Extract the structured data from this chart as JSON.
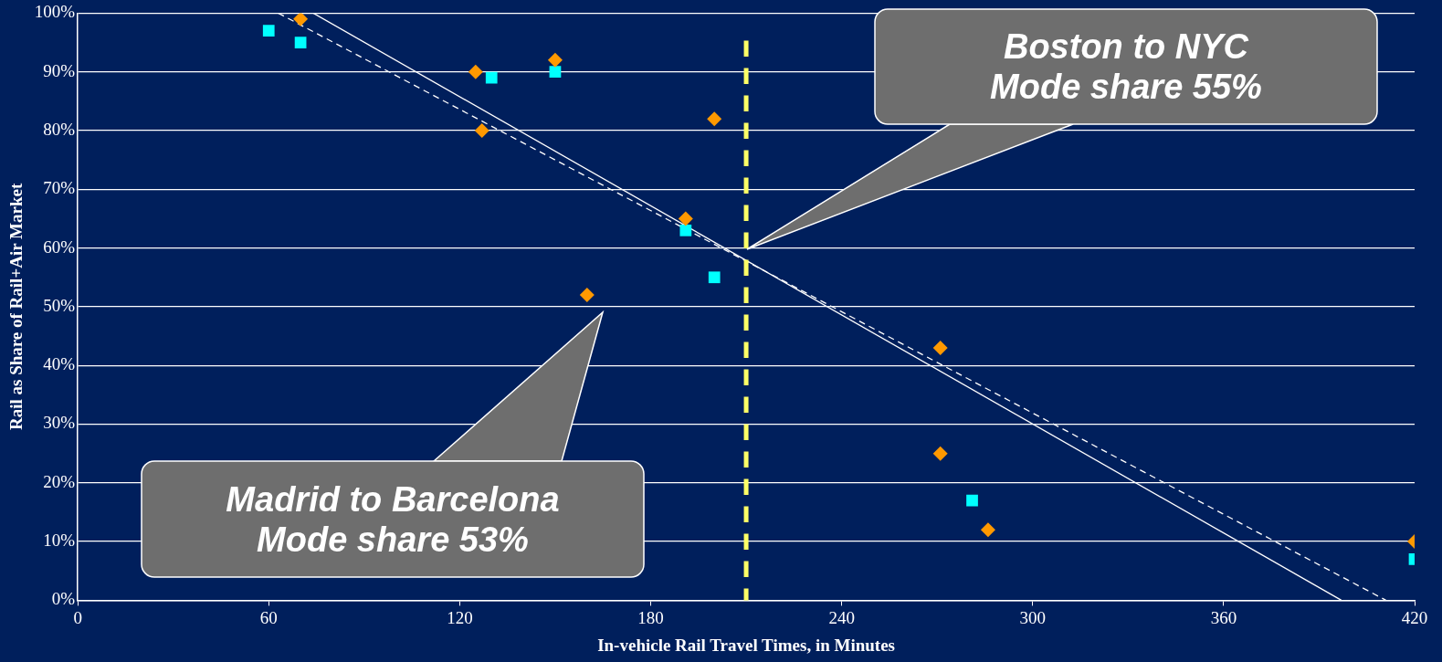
{
  "chart_data": {
    "type": "scatter",
    "xlabel": "In-vehicle Rail Travel Times, in Minutes",
    "ylabel": "Rail as Share of Rail+Air Market",
    "xlim": [
      0,
      420
    ],
    "xticks": [
      0,
      60,
      120,
      180,
      240,
      300,
      360,
      420
    ],
    "ylim": [
      0,
      100
    ],
    "yticks": [
      {
        "value": 0,
        "label": "0%"
      },
      {
        "value": 10,
        "label": "10%"
      },
      {
        "value": 20,
        "label": "20%"
      },
      {
        "value": 30,
        "label": "30%"
      },
      {
        "value": 40,
        "label": "40%"
      },
      {
        "value": 50,
        "label": "50%"
      },
      {
        "value": 60,
        "label": "60%"
      },
      {
        "value": 70,
        "label": "70%"
      },
      {
        "value": 80,
        "label": "80%"
      },
      {
        "value": 90,
        "label": "90%"
      },
      {
        "value": 100,
        "label": "100%"
      }
    ],
    "grid": "y",
    "legend": false,
    "series": [
      {
        "type": "line",
        "color": "#ffffff",
        "line_style": "solid",
        "marker": "none",
        "x": [
          74,
          397
        ],
        "values": [
          100,
          0
        ]
      },
      {
        "type": "line",
        "color": "#ffffff",
        "line_style": "dashed",
        "marker": "none",
        "x": [
          63,
          411
        ],
        "values": [
          100,
          0
        ]
      },
      {
        "color": "#ff9900",
        "marker": "diamond",
        "x": [
          70,
          125,
          127,
          150,
          200,
          191,
          160,
          271,
          271,
          286,
          420
        ],
        "values": [
          99,
          90,
          80,
          92,
          82,
          65,
          52,
          43,
          25,
          12,
          10
        ]
      },
      {
        "color": "#00ffff",
        "marker": "square",
        "x": [
          60,
          70,
          130,
          150,
          191,
          200,
          281,
          420
        ],
        "values": [
          97,
          95,
          89,
          90,
          63,
          55,
          17,
          7
        ]
      }
    ],
    "ref_lines": [
      {
        "axis": "x",
        "value": 210,
        "color": "#ffff66",
        "line_style": "dashed"
      }
    ],
    "annotations": [
      "Boston to NYC\nMode share 55%",
      "Madrid to Barcelona\nMode share 53%"
    ]
  }
}
